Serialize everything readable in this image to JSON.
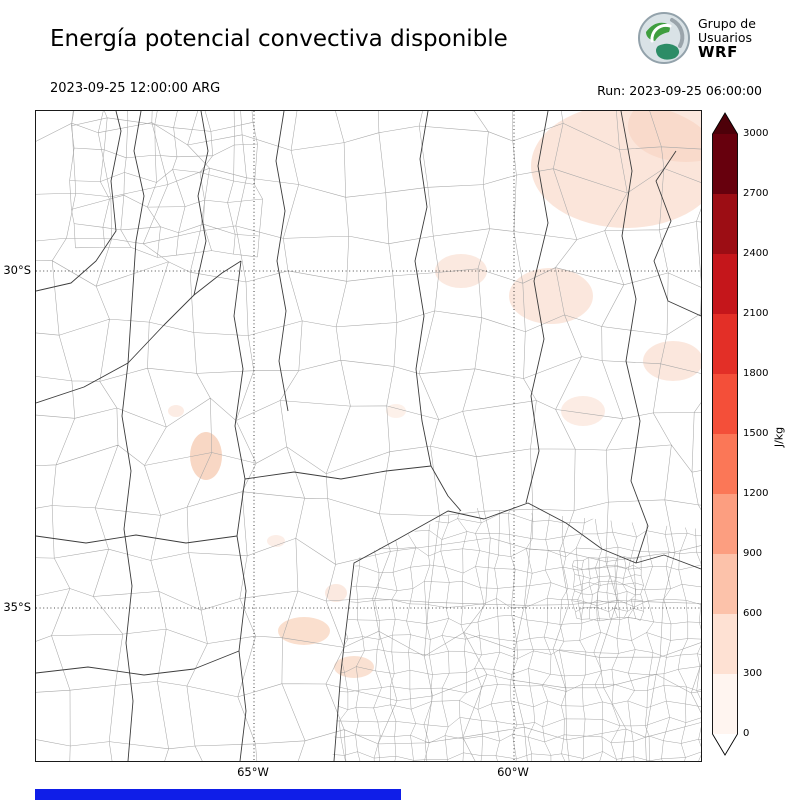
{
  "title": "Energía potencial convectiva disponible",
  "logo": {
    "line1": "Grupo de",
    "line2": "Usuarios",
    "line3": "WRF"
  },
  "header": {
    "valid_time": "2023-09-25 12:00:00 ARG",
    "run_label": "Run: 2023-09-25 06:00:00"
  },
  "map": {
    "lat_labels": [
      "30°S",
      "35°S"
    ],
    "lon_labels": [
      "65°W",
      "60°W"
    ]
  },
  "colorbar": {
    "unit": "J/kg",
    "ticks": [
      "3000",
      "2700",
      "2400",
      "2100",
      "1800",
      "1500",
      "1200",
      "900",
      "600",
      "300",
      "0"
    ],
    "colors_top_to_bottom": [
      "#67000d",
      "#9c0d14",
      "#c5161b",
      "#e32f27",
      "#f44f39",
      "#fb7757",
      "#fc9e80",
      "#fcc2aa",
      "#fee1d3",
      "#fff5f0"
    ],
    "over_color": "#4d0009",
    "under_color": "#ffffff"
  },
  "chart_data": {
    "type": "heatmap",
    "title": "Energía potencial convectiva disponible",
    "variable": "CAPE (convective available potential energy)",
    "unit": "J/kg",
    "valid_time": "2023-09-25 12:00:00 ARG",
    "run_time": "2023-09-25 06:00:00",
    "colormap": "Reds",
    "levels": [
      0,
      300,
      600,
      900,
      1200,
      1500,
      1800,
      2100,
      2400,
      2700,
      3000
    ],
    "colorbar_extend": "both",
    "x_axis": {
      "ticks": [
        "65°W",
        "60°W"
      ],
      "approx_range_deg_W": [
        69.3,
        56.4
      ]
    },
    "y_axis": {
      "ticks": [
        "30°S",
        "35°S"
      ],
      "approx_range_deg_S": [
        27.6,
        37.3
      ]
    },
    "grid": true,
    "field_regions": [
      {
        "area": "northeast corner of domain (≈28–30°S, 57–59°W)",
        "cape_J_per_kg": "0–300, patchy light shading"
      },
      {
        "area": "near 30°S 60°W",
        "cape_J_per_kg": "0–300, small patches"
      },
      {
        "area": "central-west patches (≈33.5°S, 65.5°W)",
        "cape_J_per_kg": "0–300"
      },
      {
        "area": "south-central patches (≈35.5°S, 63–64°W)",
        "cape_J_per_kg": "0–300"
      },
      {
        "area": "rest of domain",
        "cape_J_per_kg": "≈0"
      }
    ]
  }
}
